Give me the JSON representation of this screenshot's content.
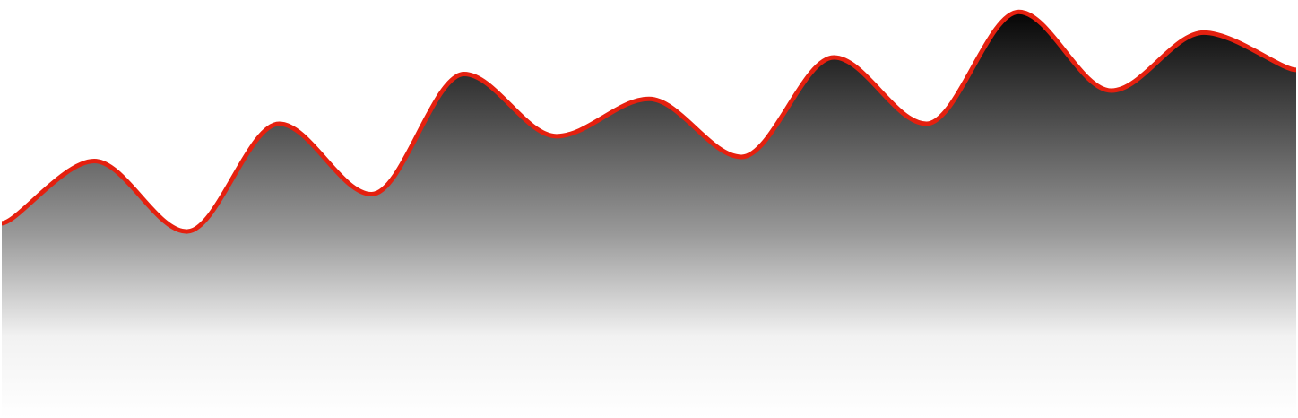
{
  "chart_data": {
    "type": "area",
    "x": [
      0,
      1,
      2,
      3,
      4,
      5,
      6,
      7,
      8,
      9,
      10,
      11,
      12,
      13,
      14
    ],
    "series": [
      {
        "values": [
          47,
          62,
          45,
          71,
          54,
          83,
          68,
          77,
          63,
          87,
          71,
          98,
          79,
          93,
          84
        ]
      }
    ],
    "ylim": [
      0,
      100
    ],
    "grid": false,
    "line_color": "#e5200f",
    "fill_gradient_top": "#050505",
    "fill_gradient_bottom": "#ffffff"
  }
}
